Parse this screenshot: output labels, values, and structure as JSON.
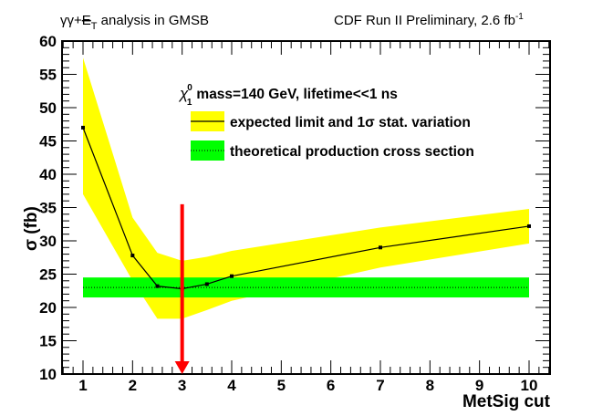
{
  "header": {
    "left_prefix": "γγ+",
    "left_met": "E",
    "left_sub": "T",
    "left_suffix": " analysis in GMSB",
    "right_text": "CDF Run II Preliminary, 2.6 fb",
    "right_sup": "-1"
  },
  "legend": {
    "header_symbol": "χ",
    "header_sup": "0",
    "header_sub": "1",
    "header_text": "mass=140 GeV, lifetime<<1 ns",
    "entries": [
      {
        "label": "expected limit and 1σ stat. variation",
        "fill": "#ffff00",
        "line": "solid"
      },
      {
        "label": "theoretical production cross section",
        "fill": "#00ff00",
        "line": "dotted"
      }
    ]
  },
  "colors": {
    "band_expected": "#ffff00",
    "band_theory": "#00ff00",
    "arrow": "#ff0000",
    "line": "#000000"
  },
  "chart_data": {
    "type": "line",
    "title": "",
    "xlabel": "MetSig cut",
    "ylabel": "σ (fb)",
    "xlim": [
      0.6,
      10.45
    ],
    "ylim": [
      10,
      60
    ],
    "x_ticks": [
      "1",
      "2",
      "3",
      "4",
      "5",
      "6",
      "7",
      "8",
      "9",
      "10"
    ],
    "y_ticks": [
      "10",
      "15",
      "20",
      "25",
      "30",
      "35",
      "40",
      "45",
      "50",
      "55",
      "60"
    ],
    "series": [
      {
        "name": "expected limit",
        "x": [
          1,
          2,
          2.5,
          3,
          3.5,
          4,
          7,
          10
        ],
        "y": [
          47.0,
          27.8,
          23.2,
          22.8,
          23.5,
          24.7,
          29.0,
          32.2
        ],
        "band_upper": [
          57.5,
          33.5,
          28.2,
          27.0,
          27.6,
          28.5,
          32.0,
          34.8
        ],
        "band_lower": [
          37.0,
          24.0,
          18.3,
          18.3,
          19.6,
          21.0,
          26.0,
          29.6
        ]
      },
      {
        "name": "theoretical production cross section",
        "x": [
          1,
          10
        ],
        "y": [
          23.0,
          23.0
        ],
        "band_upper": [
          24.5,
          24.5
        ],
        "band_lower": [
          21.5,
          21.5
        ]
      }
    ],
    "annotations": [
      {
        "type": "arrow",
        "x": 3,
        "y_from": 35.5,
        "y_to": 10,
        "color": "#ff0000"
      }
    ],
    "grid": false,
    "legend_position": "top-right"
  }
}
